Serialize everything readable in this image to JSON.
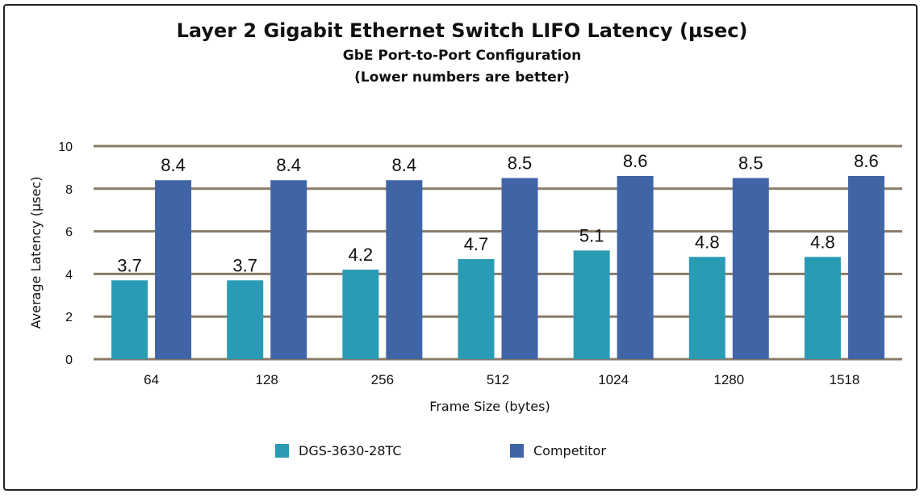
{
  "chart_data": {
    "type": "bar",
    "title": "Layer 2 Gigabit Ethernet Switch LIFO Latency (µsec)",
    "subtitle": "GbE Port-to-Port Configuration",
    "subtitle2": "(Lower numbers are better)",
    "xlabel": "Frame Size (bytes)",
    "ylabel": "Average Latency (µsec)",
    "ylim": [
      0,
      10
    ],
    "yticks": [
      0,
      2,
      4,
      6,
      8,
      10
    ],
    "grid": true,
    "legend_position": "bottom",
    "categories": [
      "64",
      "128",
      "256",
      "512",
      "1024",
      "1280",
      "1518"
    ],
    "series": [
      {
        "name": "DGS-3630-28TC",
        "color": "#2a9bb5",
        "values": [
          3.7,
          3.7,
          4.2,
          4.7,
          5.1,
          4.8,
          4.8
        ]
      },
      {
        "name": "Competitor",
        "color": "#4065a6",
        "values": [
          8.4,
          8.4,
          8.4,
          8.5,
          8.6,
          8.5,
          8.6
        ]
      }
    ],
    "grid_color": "#8a7a66"
  }
}
